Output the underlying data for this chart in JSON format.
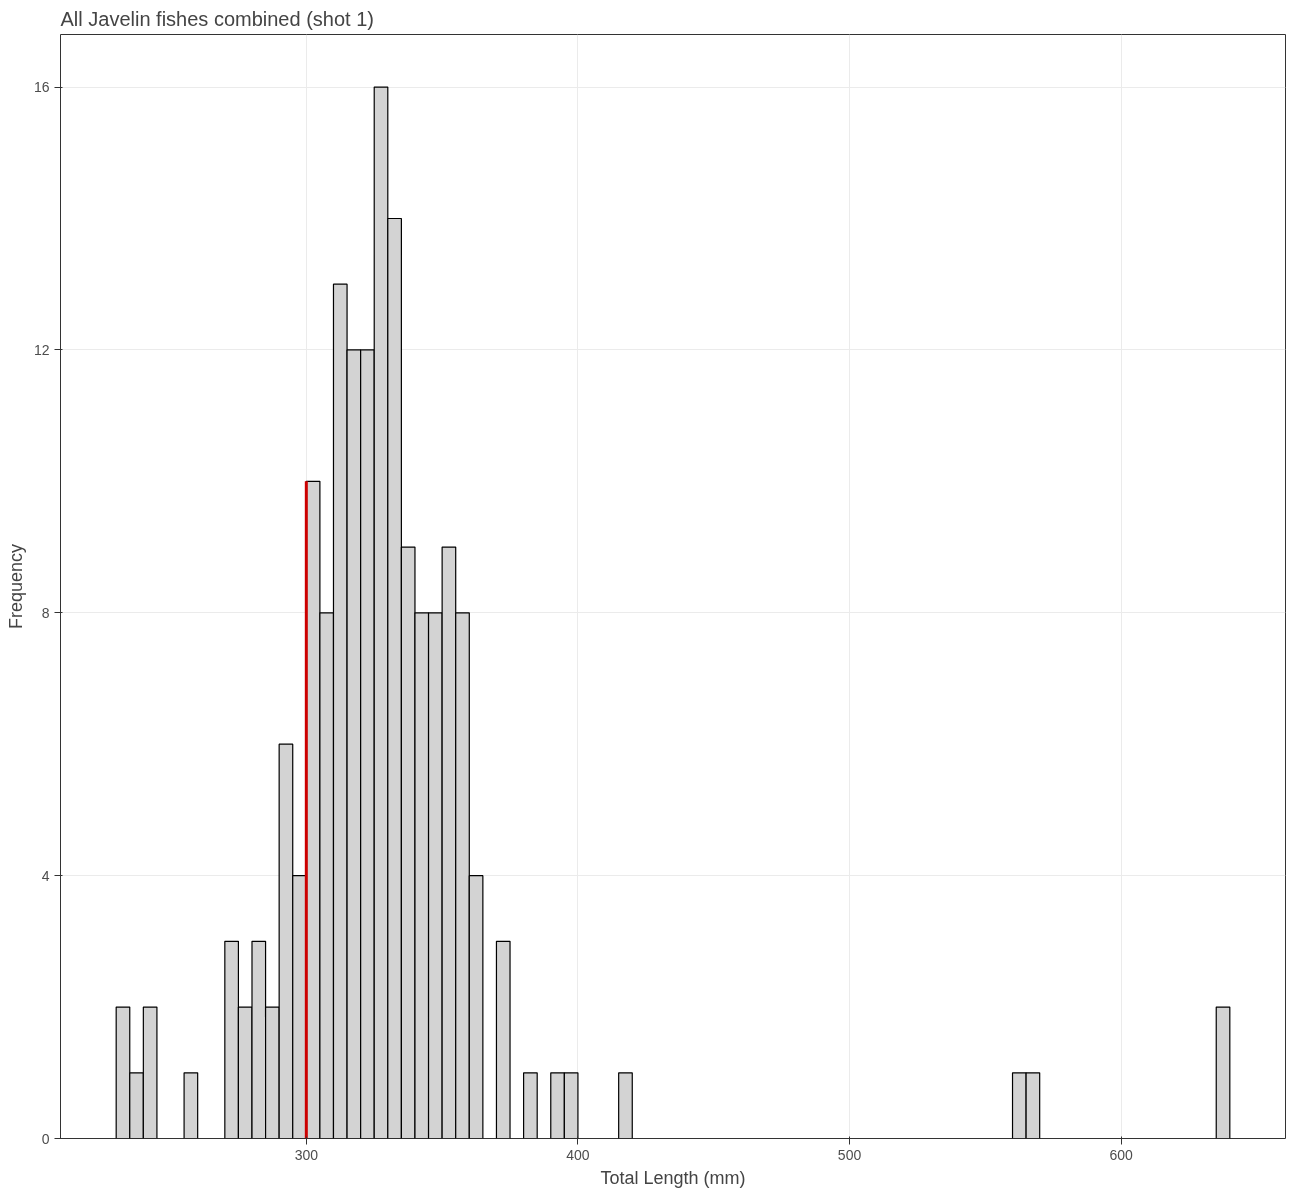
{
  "chart_data": {
    "type": "histogram",
    "title": "All Javelin fishes combined (shot 1)",
    "xlabel": "Total Length (mm)",
    "ylabel": "Frequency",
    "bins": [
      230,
      235,
      240,
      245,
      250,
      255,
      260,
      265,
      270,
      275,
      280,
      285,
      290,
      295,
      300,
      305,
      310,
      315,
      320,
      325,
      330,
      335,
      340,
      345,
      350,
      355,
      360,
      365,
      370,
      375,
      380,
      385,
      390,
      395,
      400,
      405,
      410,
      415,
      420,
      425,
      430,
      435,
      440,
      445,
      450,
      455,
      460,
      465,
      470,
      475,
      480,
      485,
      490,
      495,
      500,
      505,
      510,
      515,
      520,
      525,
      530,
      535,
      540,
      545,
      550,
      555,
      560,
      565,
      570,
      575,
      580,
      585,
      590,
      595,
      600,
      605,
      610,
      615,
      620,
      625,
      630,
      635,
      640
    ],
    "values": [
      2,
      1,
      2,
      0,
      0,
      1,
      0,
      0,
      3,
      2,
      3,
      2,
      6,
      4,
      10,
      8,
      13,
      12,
      12,
      16,
      14,
      9,
      8,
      8,
      9,
      8,
      4,
      0,
      3,
      0,
      1,
      0,
      1,
      1,
      0,
      0,
      0,
      1,
      0,
      0,
      0,
      0,
      0,
      0,
      0,
      0,
      0,
      0,
      0,
      0,
      0,
      0,
      0,
      0,
      0,
      0,
      0,
      0,
      0,
      0,
      0,
      0,
      0,
      0,
      0,
      0,
      1,
      1,
      0,
      0,
      0,
      0,
      0,
      0,
      0,
      0,
      0,
      0,
      0,
      0,
      0,
      2
    ],
    "color": "#d3d3d3",
    "series": [
      {
        "type": "line",
        "x": [
          300,
          300
        ],
        "values": [
          0,
          10
        ],
        "color": "#cc0000"
      }
    ],
    "xlim": [
      209.5,
      660.5
    ],
    "ylim": [
      0,
      16.8
    ],
    "xticks": [
      300,
      400,
      500,
      600
    ],
    "yticks": [
      0,
      4,
      8,
      12,
      16
    ],
    "grid": true
  }
}
